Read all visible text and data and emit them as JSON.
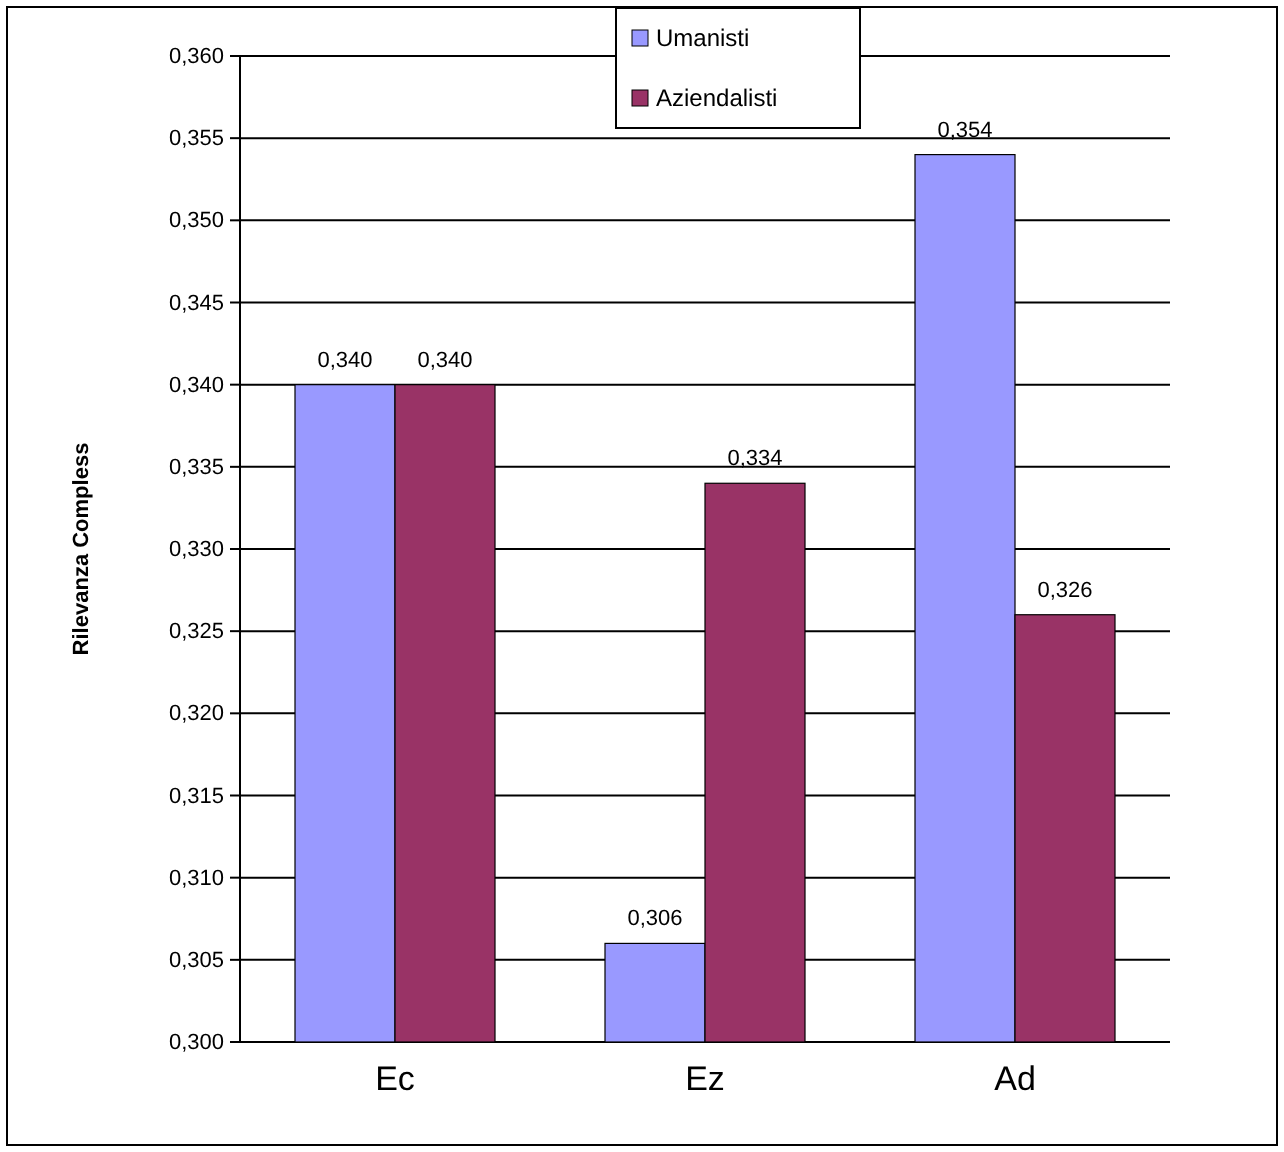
{
  "chart_data": {
    "type": "bar",
    "ylabel": "Rilevanza Compless",
    "categories": [
      "Ec",
      "Ez",
      "Ad"
    ],
    "series": [
      {
        "name": "Umanisti",
        "color": "#9999ff",
        "values": [
          0.34,
          0.306,
          0.354
        ],
        "value_labels": [
          "0,340",
          "0,306",
          "0,354"
        ]
      },
      {
        "name": "Aziendalisti",
        "color": "#993366",
        "values": [
          0.34,
          0.334,
          0.326
        ],
        "value_labels": [
          "0,340",
          "0,334",
          "0,326"
        ]
      }
    ],
    "ylim": [
      0.3,
      0.36
    ],
    "yticks": [
      {
        "value": 0.3,
        "label": "0,300"
      },
      {
        "value": 0.305,
        "label": "0,305"
      },
      {
        "value": 0.31,
        "label": "0,310"
      },
      {
        "value": 0.315,
        "label": "0,315"
      },
      {
        "value": 0.32,
        "label": "0,320"
      },
      {
        "value": 0.325,
        "label": "0,325"
      },
      {
        "value": 0.33,
        "label": "0,330"
      },
      {
        "value": 0.335,
        "label": "0,335"
      },
      {
        "value": 0.34,
        "label": "0,340"
      },
      {
        "value": 0.345,
        "label": "0,345"
      },
      {
        "value": 0.35,
        "label": "0,350"
      },
      {
        "value": 0.355,
        "label": "0,355"
      },
      {
        "value": 0.36,
        "label": "0,360"
      }
    ],
    "grid": "y",
    "legend": "top"
  }
}
